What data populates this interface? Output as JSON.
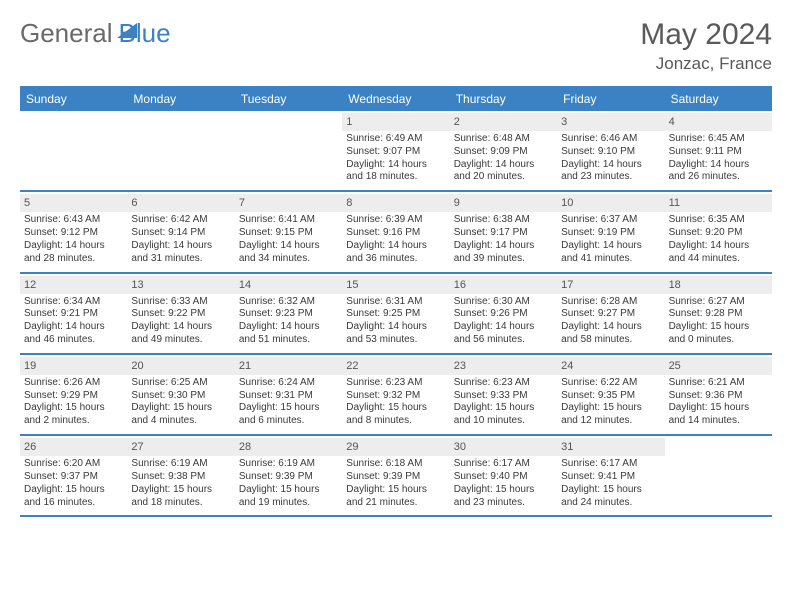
{
  "brand": {
    "part1": "General",
    "part2": "Blue"
  },
  "title": "May 2024",
  "location": "Jonzac, France",
  "colors": {
    "header_bg": "#3b82c4",
    "header_text": "#ffffff",
    "daynum_bg": "#ededed",
    "daynum_text": "#555555",
    "body_text": "#3a3a3a",
    "title_text": "#5a5a5a",
    "row_border": "#3b82c4"
  },
  "daysOfWeek": [
    "Sunday",
    "Monday",
    "Tuesday",
    "Wednesday",
    "Thursday",
    "Friday",
    "Saturday"
  ],
  "weeks": [
    [
      null,
      null,
      null,
      {
        "n": "1",
        "sr": "6:49 AM",
        "ss": "9:07 PM",
        "dl": "14 hours and 18 minutes."
      },
      {
        "n": "2",
        "sr": "6:48 AM",
        "ss": "9:09 PM",
        "dl": "14 hours and 20 minutes."
      },
      {
        "n": "3",
        "sr": "6:46 AM",
        "ss": "9:10 PM",
        "dl": "14 hours and 23 minutes."
      },
      {
        "n": "4",
        "sr": "6:45 AM",
        "ss": "9:11 PM",
        "dl": "14 hours and 26 minutes."
      }
    ],
    [
      {
        "n": "5",
        "sr": "6:43 AM",
        "ss": "9:12 PM",
        "dl": "14 hours and 28 minutes."
      },
      {
        "n": "6",
        "sr": "6:42 AM",
        "ss": "9:14 PM",
        "dl": "14 hours and 31 minutes."
      },
      {
        "n": "7",
        "sr": "6:41 AM",
        "ss": "9:15 PM",
        "dl": "14 hours and 34 minutes."
      },
      {
        "n": "8",
        "sr": "6:39 AM",
        "ss": "9:16 PM",
        "dl": "14 hours and 36 minutes."
      },
      {
        "n": "9",
        "sr": "6:38 AM",
        "ss": "9:17 PM",
        "dl": "14 hours and 39 minutes."
      },
      {
        "n": "10",
        "sr": "6:37 AM",
        "ss": "9:19 PM",
        "dl": "14 hours and 41 minutes."
      },
      {
        "n": "11",
        "sr": "6:35 AM",
        "ss": "9:20 PM",
        "dl": "14 hours and 44 minutes."
      }
    ],
    [
      {
        "n": "12",
        "sr": "6:34 AM",
        "ss": "9:21 PM",
        "dl": "14 hours and 46 minutes."
      },
      {
        "n": "13",
        "sr": "6:33 AM",
        "ss": "9:22 PM",
        "dl": "14 hours and 49 minutes."
      },
      {
        "n": "14",
        "sr": "6:32 AM",
        "ss": "9:23 PM",
        "dl": "14 hours and 51 minutes."
      },
      {
        "n": "15",
        "sr": "6:31 AM",
        "ss": "9:25 PM",
        "dl": "14 hours and 53 minutes."
      },
      {
        "n": "16",
        "sr": "6:30 AM",
        "ss": "9:26 PM",
        "dl": "14 hours and 56 minutes."
      },
      {
        "n": "17",
        "sr": "6:28 AM",
        "ss": "9:27 PM",
        "dl": "14 hours and 58 minutes."
      },
      {
        "n": "18",
        "sr": "6:27 AM",
        "ss": "9:28 PM",
        "dl": "15 hours and 0 minutes."
      }
    ],
    [
      {
        "n": "19",
        "sr": "6:26 AM",
        "ss": "9:29 PM",
        "dl": "15 hours and 2 minutes."
      },
      {
        "n": "20",
        "sr": "6:25 AM",
        "ss": "9:30 PM",
        "dl": "15 hours and 4 minutes."
      },
      {
        "n": "21",
        "sr": "6:24 AM",
        "ss": "9:31 PM",
        "dl": "15 hours and 6 minutes."
      },
      {
        "n": "22",
        "sr": "6:23 AM",
        "ss": "9:32 PM",
        "dl": "15 hours and 8 minutes."
      },
      {
        "n": "23",
        "sr": "6:23 AM",
        "ss": "9:33 PM",
        "dl": "15 hours and 10 minutes."
      },
      {
        "n": "24",
        "sr": "6:22 AM",
        "ss": "9:35 PM",
        "dl": "15 hours and 12 minutes."
      },
      {
        "n": "25",
        "sr": "6:21 AM",
        "ss": "9:36 PM",
        "dl": "15 hours and 14 minutes."
      }
    ],
    [
      {
        "n": "26",
        "sr": "6:20 AM",
        "ss": "9:37 PM",
        "dl": "15 hours and 16 minutes."
      },
      {
        "n": "27",
        "sr": "6:19 AM",
        "ss": "9:38 PM",
        "dl": "15 hours and 18 minutes."
      },
      {
        "n": "28",
        "sr": "6:19 AM",
        "ss": "9:39 PM",
        "dl": "15 hours and 19 minutes."
      },
      {
        "n": "29",
        "sr": "6:18 AM",
        "ss": "9:39 PM",
        "dl": "15 hours and 21 minutes."
      },
      {
        "n": "30",
        "sr": "6:17 AM",
        "ss": "9:40 PM",
        "dl": "15 hours and 23 minutes."
      },
      {
        "n": "31",
        "sr": "6:17 AM",
        "ss": "9:41 PM",
        "dl": "15 hours and 24 minutes."
      },
      null
    ]
  ],
  "labels": {
    "sunrise": "Sunrise:",
    "sunset": "Sunset:",
    "daylight": "Daylight:"
  }
}
